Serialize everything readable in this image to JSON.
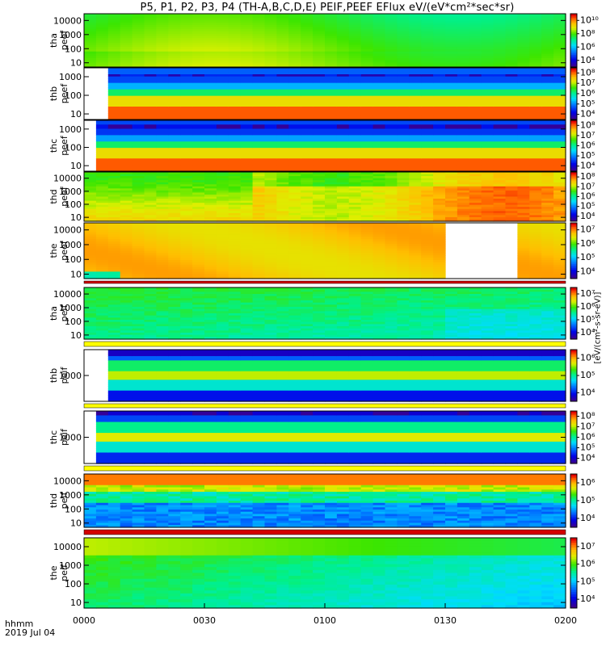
{
  "title": "P5, P1, P2, P3, P4 (TH-A,B,C,D,E) PEIF,PEEF EFlux eV/(eV*cm²*sec*sr)",
  "footer": {
    "time_label": "hhmm",
    "date_label": "2019 Jul 04"
  },
  "colorbar_unit_label": "[eV/(cm²-s-sr-eV)]",
  "chart_data": {
    "type": "heatmap",
    "x_axis": {
      "label": "hhmm",
      "ticks": [
        "0000",
        "0030",
        "0100",
        "0130",
        "0200"
      ],
      "range": [
        "00:00",
        "02:00"
      ]
    },
    "panels": [
      {
        "name": "tha peef",
        "ylabel": [
          "tha",
          "peef"
        ],
        "yscale": "log",
        "yticks": [
          "10",
          "100",
          "1000",
          "10000"
        ],
        "ylim": [
          5,
          30000
        ],
        "colorbar_ticks": [
          "10⁴",
          "10⁶",
          "10⁸",
          "10¹⁰"
        ],
        "data_start": 0.0,
        "gaps": [],
        "profile": "tha_peef"
      },
      {
        "name": "thb peef",
        "ylabel": [
          "thb",
          "peef"
        ],
        "yscale": "log",
        "yticks": [
          "10",
          "100",
          "1000"
        ],
        "ylim": [
          5,
          3000
        ],
        "colorbar_ticks": [
          "10⁴",
          "10⁵",
          "10⁶",
          "10⁷",
          "10⁸"
        ],
        "data_start": 0.05,
        "gaps": [],
        "profile": "thb_peef"
      },
      {
        "name": "thc peef",
        "ylabel": [
          "thc",
          "peef"
        ],
        "yscale": "log",
        "yticks": [
          "10",
          "100",
          "1000"
        ],
        "ylim": [
          5,
          3000
        ],
        "colorbar_ticks": [
          "10⁴",
          "10⁵",
          "10⁶",
          "10⁷",
          "10⁸"
        ],
        "data_start": 0.03,
        "gaps": [],
        "profile": "thc_peef"
      },
      {
        "name": "thd peef",
        "ylabel": [
          "thd",
          "peef"
        ],
        "yscale": "log",
        "yticks": [
          "10",
          "100",
          "1000",
          "10000"
        ],
        "ylim": [
          5,
          30000
        ],
        "colorbar_ticks": [
          "10⁴",
          "10⁵",
          "10⁶",
          "10⁷",
          "10⁸"
        ],
        "data_start": 0.0,
        "gaps": [],
        "profile": "thd_peef"
      },
      {
        "name": "the peef",
        "ylabel": [
          "the",
          "peef"
        ],
        "yscale": "log",
        "yticks": [
          "10",
          "100",
          "1000",
          "10000"
        ],
        "ylim": [
          5,
          30000
        ],
        "colorbar_ticks": [
          "10⁴",
          "10⁵",
          "10⁶",
          "10⁷"
        ],
        "data_start": 0.0,
        "gaps": [
          [
            0.758,
            0.912
          ]
        ],
        "profile": "the_peef"
      },
      {
        "name": "tha peif",
        "ylabel": [
          "tha",
          "peif"
        ],
        "yscale": "log",
        "yticks": [
          "10",
          "100",
          "1000",
          "10000"
        ],
        "ylim": [
          5,
          30000
        ],
        "colorbar_ticks": [
          "10⁴",
          "10⁵",
          "10⁶",
          "10⁷"
        ],
        "data_start": 0.0,
        "gaps": [],
        "profile": "tha_peif"
      },
      {
        "name": "thb peif",
        "ylabel": [
          "thb",
          "peif"
        ],
        "yscale": "log",
        "yticks": [
          "1000"
        ],
        "ylim": [
          100,
          10000
        ],
        "colorbar_ticks": [
          "10⁴",
          "10⁵",
          "10⁶"
        ],
        "data_start": 0.05,
        "gaps": [],
        "profile": "thb_peif"
      },
      {
        "name": "thc peif",
        "ylabel": [
          "thc",
          "peif"
        ],
        "yscale": "log",
        "yticks": [
          "1000"
        ],
        "ylim": [
          100,
          10000
        ],
        "colorbar_ticks": [
          "10⁴",
          "10⁵",
          "10⁶",
          "10⁷",
          "10⁸"
        ],
        "data_start": 0.03,
        "gaps": [],
        "profile": "thc_peif"
      },
      {
        "name": "thd peif",
        "ylabel": [
          "thd",
          "peif"
        ],
        "yscale": "log",
        "yticks": [
          "10",
          "100",
          "1000",
          "10000"
        ],
        "ylim": [
          5,
          30000
        ],
        "colorbar_ticks": [
          "10⁴",
          "10⁵",
          "10⁶"
        ],
        "data_start": 0.0,
        "gaps": [],
        "profile": "thd_peif"
      },
      {
        "name": "the peif",
        "ylabel": [
          "the",
          "peif"
        ],
        "yscale": "log",
        "yticks": [
          "10",
          "100",
          "1000",
          "10000"
        ],
        "ylim": [
          5,
          30000
        ],
        "colorbar_ticks": [
          "10⁴",
          "10⁵",
          "10⁶",
          "10⁷"
        ],
        "data_start": 0.0,
        "gaps": [],
        "profile": "the_peif"
      }
    ]
  }
}
